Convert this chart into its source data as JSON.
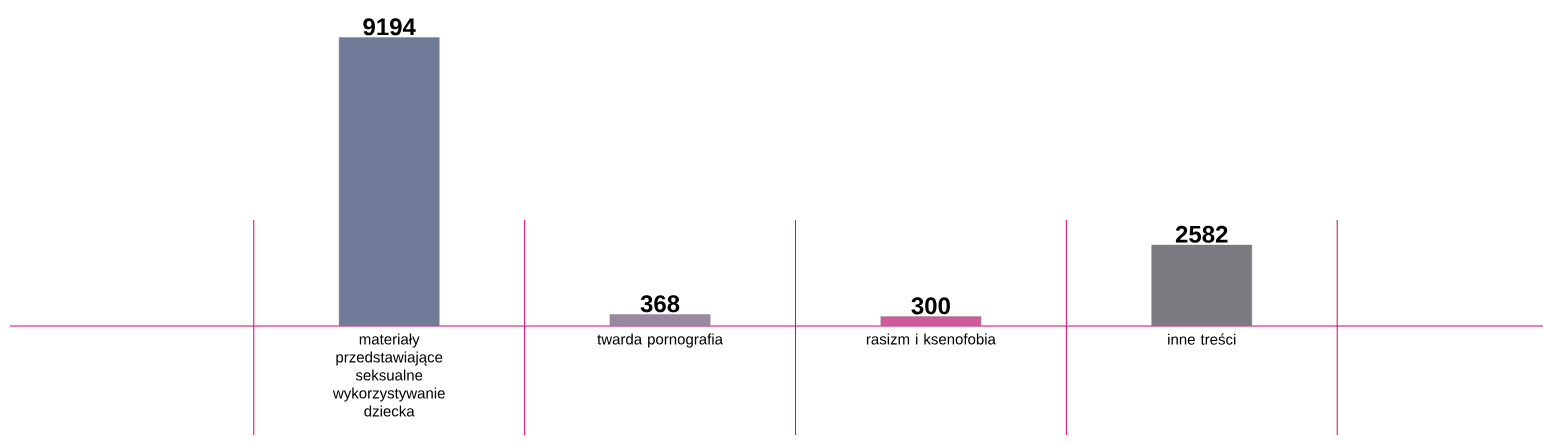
{
  "chart_data": {
    "type": "bar",
    "categories": [
      "materiały przedstawiające seksualne wykorzystywanie dziecka",
      "twarda pornografia",
      "rasizm i ksenofobia",
      "inne treści"
    ],
    "values": [
      9194,
      368,
      300,
      2582
    ],
    "colors": [
      "#6f7b98",
      "#9a88a2",
      "#d05a9c",
      "#7a7a80"
    ],
    "data_labels": true
  }
}
